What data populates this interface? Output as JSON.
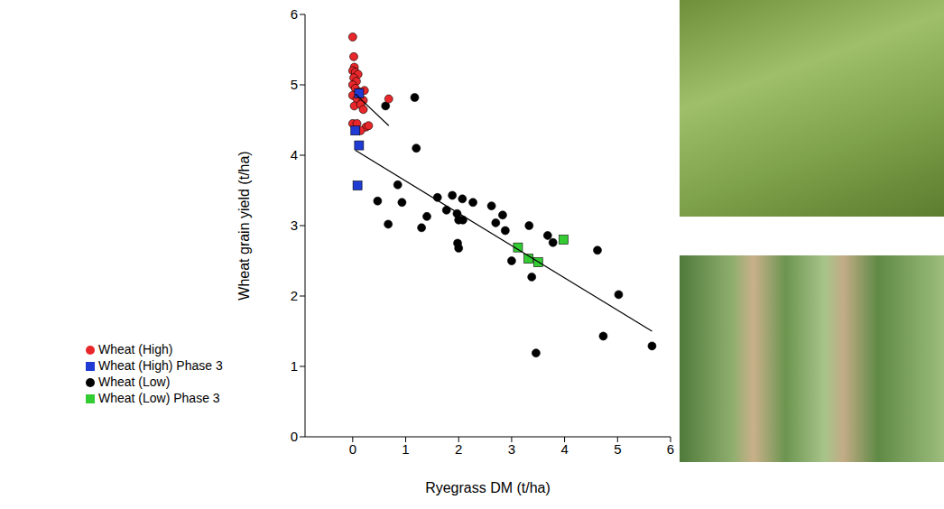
{
  "chart_data": {
    "type": "scatter",
    "xlabel": "Ryegrass DM (t/ha)",
    "ylabel": "Wheat grain yield (t/ha)",
    "xlim": [
      -0.9,
      6
    ],
    "ylim": [
      0,
      6
    ],
    "xticks": [
      0,
      1,
      2,
      3,
      4,
      5,
      6
    ],
    "yticks": [
      0,
      1,
      2,
      3,
      4,
      5,
      6
    ],
    "grid": false,
    "legend": "lower left",
    "series": [
      {
        "name": "Wheat (Low)",
        "type": "scatter",
        "color": "#000000",
        "marker": "circle",
        "x": [
          0.62,
          1.17,
          1.2,
          0.47,
          0.67,
          0.85,
          0.93,
          1.3,
          1.4,
          1.6,
          1.77,
          1.88,
          1.97,
          2.0,
          2.07,
          2.08,
          1.98,
          2.0,
          2.27,
          2.62,
          2.7,
          2.83,
          2.88,
          3.0,
          3.33,
          3.38,
          3.46,
          3.68,
          3.78,
          4.62,
          4.73,
          5.02,
          5.65
        ],
        "values": [
          4.7,
          4.82,
          4.1,
          3.35,
          3.02,
          3.58,
          3.33,
          2.97,
          3.13,
          3.4,
          3.22,
          3.43,
          3.17,
          3.08,
          3.38,
          3.08,
          2.75,
          2.68,
          3.33,
          3.28,
          3.04,
          3.15,
          2.93,
          2.5,
          3.0,
          2.27,
          1.19,
          2.86,
          2.76,
          2.65,
          1.43,
          2.02,
          1.29
        ]
      },
      {
        "name": "Wheat (High)",
        "type": "scatter",
        "color": "#e8272a",
        "marker": "circle",
        "x": [
          0.0,
          0.02,
          0.03,
          0.0,
          0.05,
          0.1,
          0.02,
          0.07,
          0.0,
          0.05,
          0.12,
          0.22,
          0.0,
          0.08,
          0.2,
          0.68,
          0.03,
          0.15,
          0.2,
          0.0,
          0.08,
          0.25,
          0.3,
          0.15
        ],
        "values": [
          5.68,
          5.4,
          5.25,
          5.2,
          5.18,
          5.15,
          5.1,
          5.05,
          5.0,
          4.95,
          4.9,
          4.92,
          4.85,
          4.8,
          4.78,
          4.8,
          4.7,
          4.72,
          4.65,
          4.45,
          4.45,
          4.4,
          4.42,
          4.35
        ]
      },
      {
        "name": "Wheat (High) Phase 3",
        "type": "scatter",
        "color": "#1f3bd4",
        "marker": "square",
        "x": [
          0.12,
          0.05,
          0.12,
          0.09
        ],
        "values": [
          4.88,
          4.35,
          4.14,
          3.57
        ]
      },
      {
        "name": "Wheat (Low) Phase 3",
        "type": "scatter",
        "color": "#33cc33",
        "marker": "square",
        "x": [
          3.12,
          3.32,
          3.5,
          3.98
        ],
        "values": [
          2.69,
          2.53,
          2.48,
          2.8
        ]
      },
      {
        "type": "line",
        "color": "#000000",
        "x": [
          0.05,
          0.68
        ],
        "values": [
          4.87,
          4.42
        ]
      },
      {
        "type": "line",
        "color": "#000000",
        "x": [
          0.05,
          5.65
        ],
        "values": [
          4.07,
          1.5
        ]
      }
    ]
  }
}
